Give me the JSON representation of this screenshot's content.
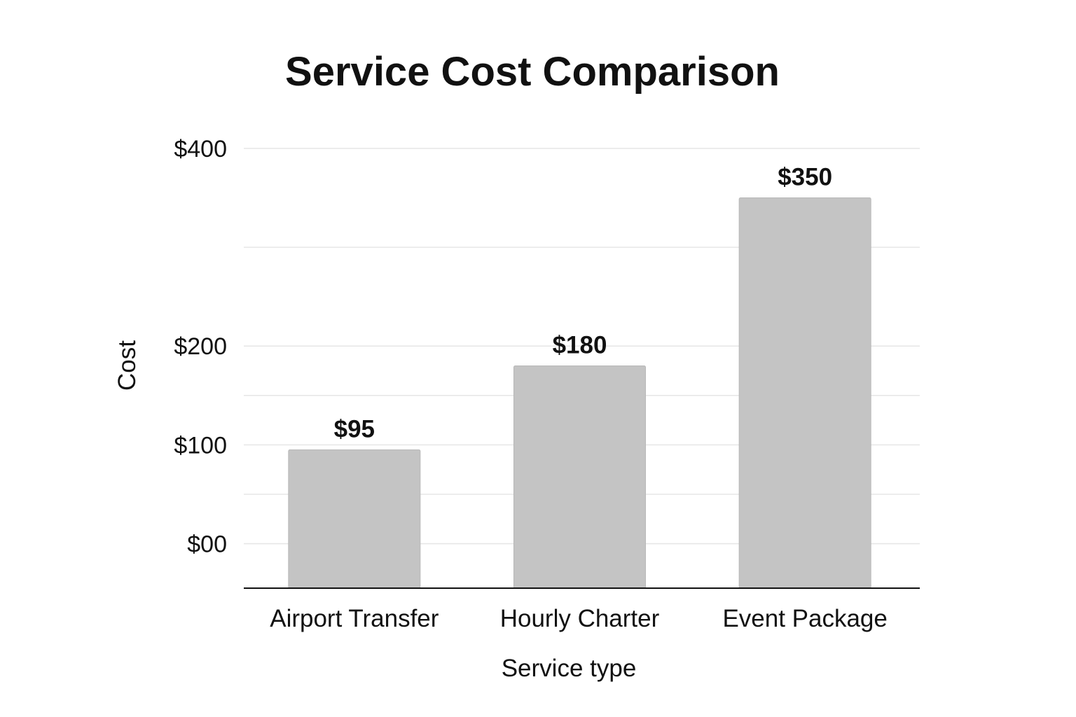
{
  "chart_data": {
    "type": "bar",
    "title": "Service Cost Comparison",
    "xlabel": "Service type",
    "ylabel": "Cost",
    "categories": [
      "Airport Transfer",
      "Hourly Charter",
      "Event Package"
    ],
    "values": [
      95,
      180,
      350
    ],
    "data_labels": [
      "$95",
      "$180",
      "$350"
    ],
    "yticks": [
      {
        "value": 0,
        "label": "$00"
      },
      {
        "value": 100,
        "label": "$100"
      },
      {
        "value": 200,
        "label": "$200"
      },
      {
        "value": 400,
        "label": "$400"
      }
    ],
    "ylim": [
      -45,
      400
    ],
    "grid": true,
    "legend": "none",
    "colors": {
      "bar": "#c4c4c4",
      "bar_edge": "#b8b8b8",
      "grid": "#e6e6e6",
      "axis": "#111111",
      "text": "#111111"
    }
  }
}
